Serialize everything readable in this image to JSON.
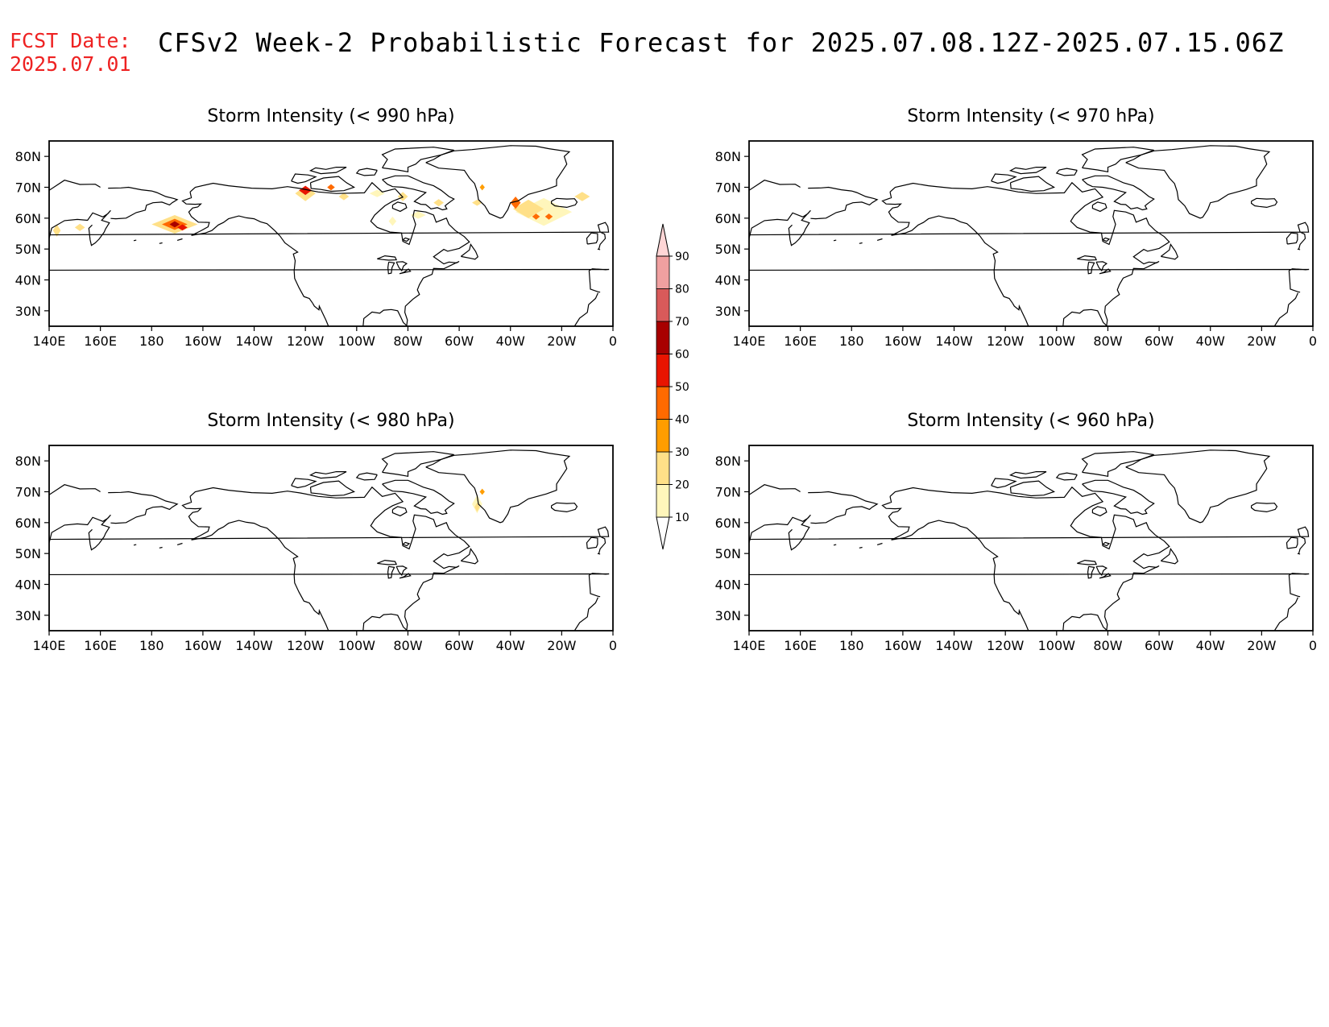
{
  "header": {
    "fcst_label": "FCST Date:",
    "fcst_date": "2025.07.01",
    "title": "CFSv2 Week-2 Probabilistic Forecast for 2025.07.08.12Z-2025.07.15.06Z"
  },
  "axes": {
    "lon_labels": [
      "140E",
      "160E",
      "180",
      "160W",
      "140W",
      "120W",
      "100W",
      "80W",
      "60W",
      "40W",
      "20W",
      "0"
    ],
    "lat_labels": [
      "80N",
      "70N",
      "60N",
      "50N",
      "40N",
      "30N"
    ]
  },
  "colorbar": {
    "levels": [
      "10",
      "20",
      "30",
      "40",
      "50",
      "60",
      "70",
      "80",
      "90"
    ],
    "colors": [
      "#ffffff",
      "#fff6bb",
      "#ffe088",
      "#ff9d00",
      "#ff6a00",
      "#e81400",
      "#a80000",
      "#d85a5a",
      "#f0a0a0",
      "#ffd6d6"
    ]
  },
  "panels": [
    {
      "title": "Storm Intensity (< 990 hPa)",
      "blobs": [
        {
          "lon": -171,
          "lat": 58,
          "rx": 9,
          "ry": 3,
          "color": "#ffe088"
        },
        {
          "lon": -171,
          "lat": 58,
          "rx": 5,
          "ry": 1.8,
          "color": "#ff6a00"
        },
        {
          "lon": -171,
          "lat": 58,
          "rx": 2,
          "ry": 1,
          "color": "#a80000"
        },
        {
          "lon": -168,
          "lat": 57,
          "rx": 2,
          "ry": 1,
          "color": "#e81400"
        },
        {
          "lon": 143,
          "lat": 56,
          "rx": 1.5,
          "ry": 2,
          "color": "#ffe088"
        },
        {
          "lon": 152,
          "lat": 57,
          "rx": 2,
          "ry": 1.2,
          "color": "#ffe088"
        },
        {
          "lon": -120,
          "lat": 68,
          "rx": 4,
          "ry": 2.5,
          "color": "#ffe088"
        },
        {
          "lon": -120,
          "lat": 69,
          "rx": 2.5,
          "ry": 1.5,
          "color": "#e81400"
        },
        {
          "lon": -110,
          "lat": 70,
          "rx": 1.5,
          "ry": 1,
          "color": "#ff6a00"
        },
        {
          "lon": -105,
          "lat": 67,
          "rx": 2,
          "ry": 1.2,
          "color": "#ffe088"
        },
        {
          "lon": -92,
          "lat": 68,
          "rx": 3,
          "ry": 1.2,
          "color": "#fff6bb"
        },
        {
          "lon": -82,
          "lat": 67,
          "rx": 2,
          "ry": 1.5,
          "color": "#ffe088"
        },
        {
          "lon": -68,
          "lat": 65,
          "rx": 2,
          "ry": 1.2,
          "color": "#ffe088"
        },
        {
          "lon": -76,
          "lat": 61,
          "rx": 3,
          "ry": 1.2,
          "color": "#fff6bb"
        },
        {
          "lon": -86,
          "lat": 59,
          "rx": 1.5,
          "ry": 1.5,
          "color": "#fff6bb"
        },
        {
          "lon": -53,
          "lat": 65,
          "rx": 2,
          "ry": 1,
          "color": "#ffe088"
        },
        {
          "lon": -51,
          "lat": 70,
          "rx": 1,
          "ry": 1,
          "color": "#ff9d00"
        },
        {
          "lon": -27,
          "lat": 62,
          "rx": 11,
          "ry": 4.5,
          "color": "#fff6bb"
        },
        {
          "lon": -33,
          "lat": 63,
          "rx": 6,
          "ry": 3,
          "color": "#ffe088"
        },
        {
          "lon": -38,
          "lat": 65,
          "rx": 2,
          "ry": 2,
          "color": "#ff6a00"
        },
        {
          "lon": -30,
          "lat": 60.5,
          "rx": 1.5,
          "ry": 1,
          "color": "#ff6a00"
        },
        {
          "lon": -25,
          "lat": 60.5,
          "rx": 1.5,
          "ry": 1,
          "color": "#ff6a00"
        },
        {
          "lon": -12,
          "lat": 67,
          "rx": 3,
          "ry": 1.5,
          "color": "#ffe088"
        }
      ]
    },
    {
      "title": "Storm Intensity (< 970 hPa)",
      "blobs": []
    },
    {
      "title": "Storm Intensity (< 980 hPa)",
      "blobs": [
        {
          "lon": -53,
          "lat": 66,
          "rx": 2,
          "ry": 3,
          "color": "#fff6bb"
        },
        {
          "lon": -53,
          "lat": 65,
          "rx": 1,
          "ry": 1.5,
          "color": "#ffe088"
        },
        {
          "lon": -51,
          "lat": 70,
          "rx": 1,
          "ry": 1,
          "color": "#ff9d00"
        }
      ]
    },
    {
      "title": "Storm Intensity (< 960 hPa)",
      "blobs": []
    }
  ]
}
